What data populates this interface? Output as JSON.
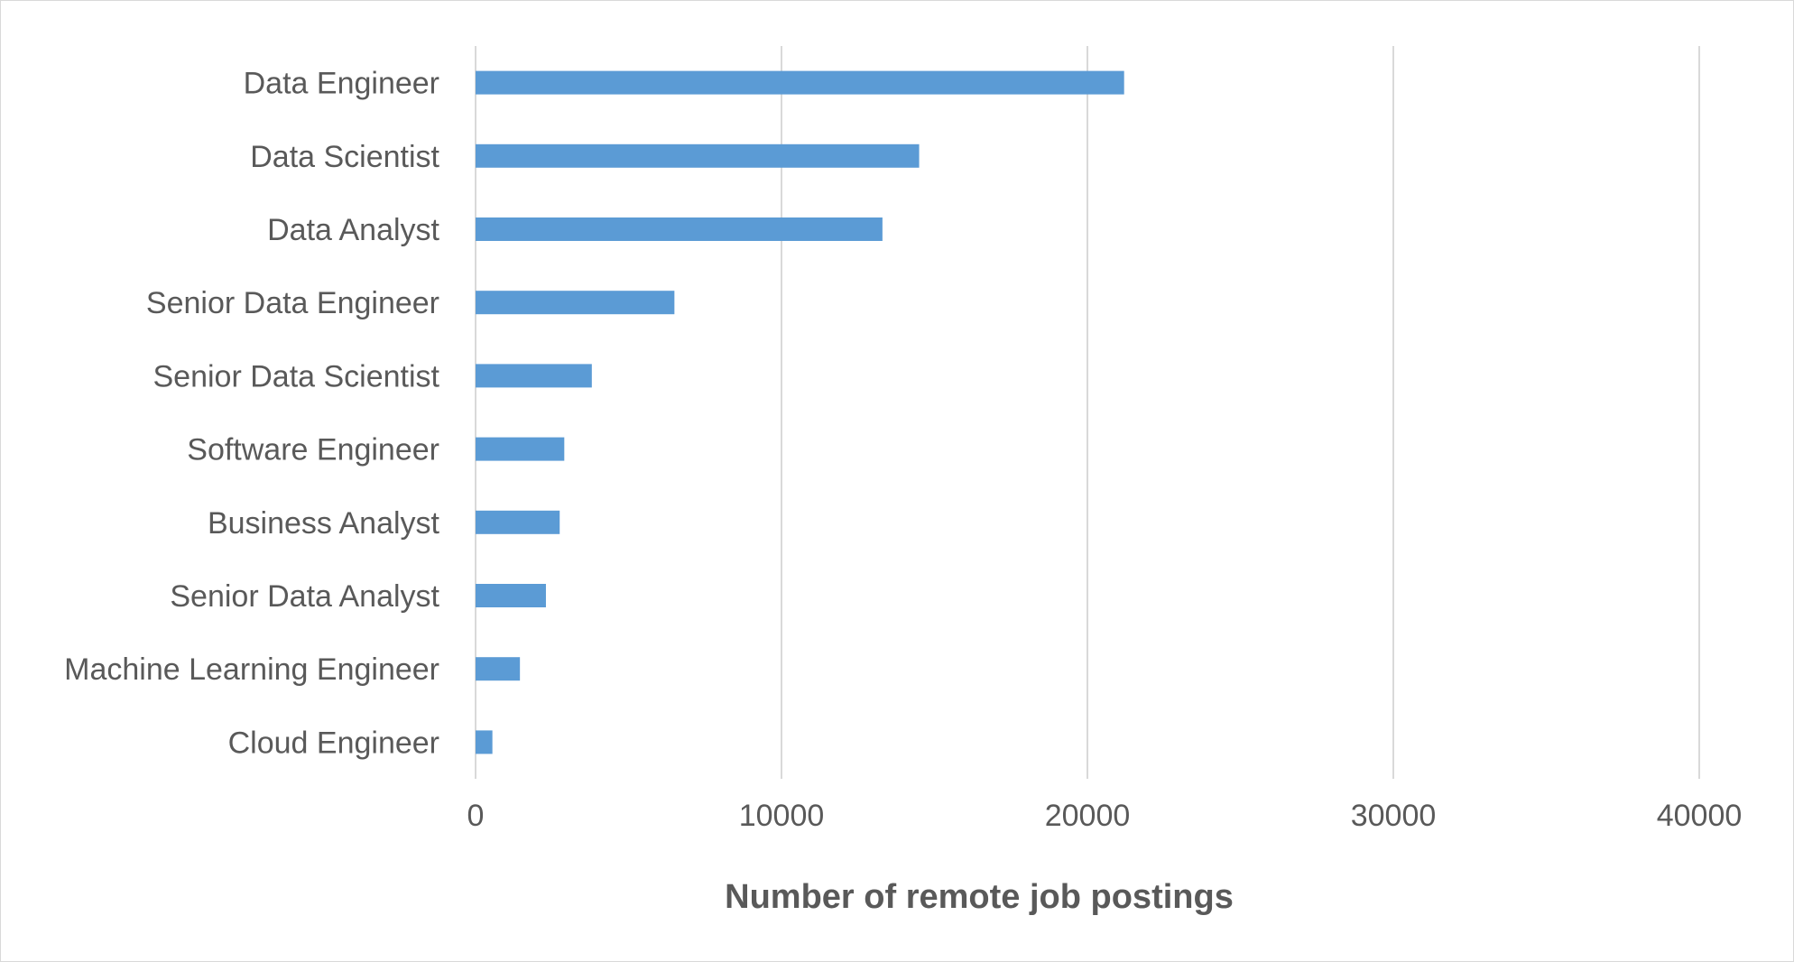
{
  "chart_data": {
    "type": "bar",
    "orientation": "horizontal",
    "title": "",
    "xlabel": "Number of remote job postings",
    "ylabel": "",
    "xlim": [
      0,
      40000
    ],
    "xticks": [
      0,
      10000,
      20000,
      30000,
      40000
    ],
    "xtick_labels": [
      "0",
      "10000",
      "20000",
      "30000",
      "40000"
    ],
    "grid": true,
    "legend": "none",
    "categories": [
      "Data Engineer",
      "Data Scientist",
      "Data Analyst",
      "Senior Data Engineer",
      "Senior Data Scientist",
      "Software Engineer",
      "Business Analyst",
      "Senior Data Analyst",
      "Machine Learning Engineer",
      "Cloud Engineer"
    ],
    "values": [
      21200,
      14500,
      13300,
      6500,
      3800,
      2900,
      2750,
      2300,
      1450,
      550
    ],
    "bar_color": "#5b9bd5",
    "grid_color": "#d9d9d9",
    "text_color": "#595959"
  }
}
